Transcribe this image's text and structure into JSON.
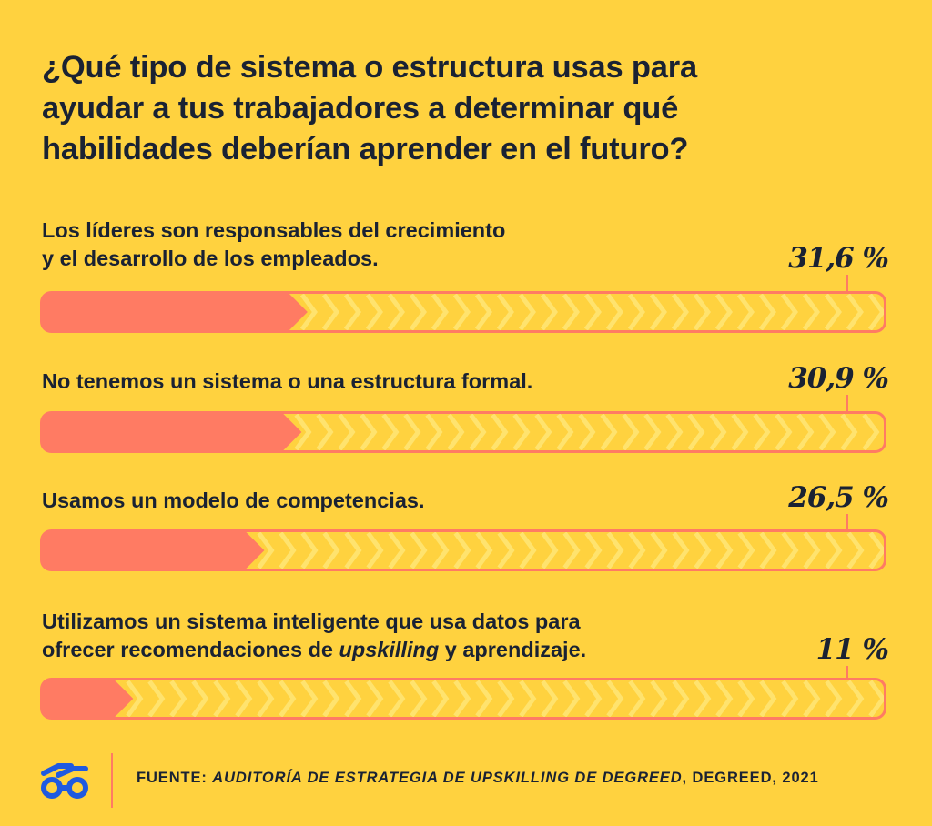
{
  "title_lines": [
    "¿Qué tipo de sistema o estructura usas para",
    "ayudar a tus trabajadores a determinar qué",
    "habilidades deberían aprender en el futuro?"
  ],
  "chart_data": {
    "type": "bar",
    "orientation": "horizontal",
    "title": "¿Qué tipo de sistema o estructura usas para ayudar a tus trabajadores a determinar qué habilidades deberían aprender en el futuro?",
    "unit": "%",
    "xlim": [
      0,
      100
    ],
    "categories": [
      "Los líderes son responsables del crecimiento y el desarrollo de los empleados.",
      "No tenemos un sistema o una estructura formal.",
      "Usamos un modelo de competencias.",
      "Utilizamos un sistema inteligente que usa datos para ofrecer recomendaciones de upskilling y aprendizaje."
    ],
    "values": [
      31.6,
      30.9,
      26.5,
      11
    ],
    "value_labels": [
      "31,6 %",
      "30,9 %",
      "26,5 %",
      "11 %"
    ],
    "label_lines": [
      [
        [
          "Los líderes son responsables del crecimiento"
        ],
        [
          "y el desarrollo de los empleados."
        ]
      ],
      [
        [
          "No tenemos un sistema o una estructura formal."
        ]
      ],
      [
        [
          "Usamos un modelo de competencias."
        ]
      ],
      [
        [
          "Utilizamos un sistema inteligente que usa datos para"
        ],
        [
          "ofrecer recomendaciones de ",
          "upskilling",
          " y aprendizaje."
        ]
      ]
    ]
  },
  "footer": {
    "prefix": "FUENTE: ",
    "source_italic": "AUDITORÍA DE ESTRATEGIA DE UPSKILLING DE DEGREED",
    "suffix": ", DEGREED, 2021"
  },
  "colors": {
    "background": "#FFD23F",
    "text": "#1A2233",
    "bar_fill": "#FF7B63",
    "bar_track": "#FFD23F",
    "chevron": "#FFE36E",
    "logo": "#1F5AE0"
  },
  "logo_icon": "degreed-glasses-icon"
}
